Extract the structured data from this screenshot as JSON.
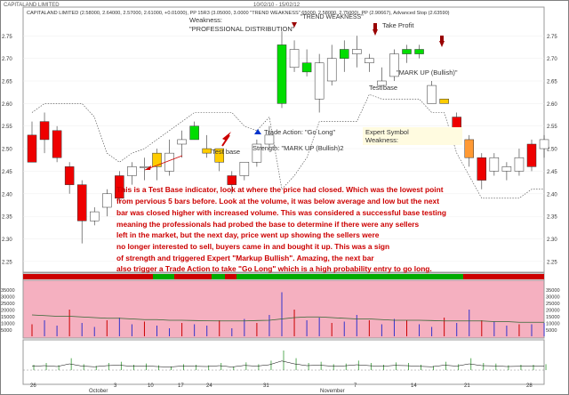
{
  "window": {
    "title": "CAPITALAND LIMITED",
    "ohlc_line": "CAPITALAND LIMITED (2.58000, 2.64000, 2.57000, 2.61000, +0.01000), PP 15R3 (3.05000, 3.0000 \"TREND WEAKNESS\" 65000, 2.58000, 2.75000), PP (2.90667), Advanced Stop (2.63590)",
    "date_range": "10/02/10 - 15/02/12"
  },
  "annotations": {
    "weakness_title": "Weakness:",
    "weakness_text": "\"PROFESSIONAL DISTRIBUTION\"",
    "trend_weakness": "\"TREND WEAKNESS\"",
    "take_profit": "Take Profit",
    "markup_bullish_right": "\"MARK UP (Bullish)\"",
    "test_base_right": "Test base",
    "test_base_left": "Test base",
    "trade_action": "Trade Action: \"Go Long\"",
    "strength": "Strength: \"MARK UP (Bullish)2",
    "expert_symbol": "Expert Symbol",
    "expert_weakness": "Weakness:"
  },
  "explanation": [
    "This is a Test Base indicator, look at where the price had closed. Which was the lowest point",
    "from pervious 5 bars before. Look at the volume, it was below average and low but the next",
    "bar was closed higher with increased volume. This was considered a successful base testing",
    "meaning the professionals had probed the base to determine if there were any sellers",
    "left in the market, but the next day, price went up showing the sellers were",
    "no longer interested to sell, buyers came in and bought it up. This was a sign",
    "of strength and triggered Expert \"Markup Bullish\". Amazing, the next bar",
    "also trigger a Trade Action to take \"Go Long\" which is a high probability entry to go long."
  ],
  "colors": {
    "bull": "#ffffff",
    "bear": "#ee0000",
    "yellow_bar": "#ffcc00",
    "green_bar": "#00dd00",
    "pink_panel": "#f5b0c0",
    "text_red": "#cc0000",
    "note_bg": "#fffbe0"
  },
  "chart_data": {
    "type": "candlestick",
    "y_axis": {
      "ylim": [
        2.23,
        2.79
      ],
      "ticks": [
        "2.75",
        "2.70",
        "2.65",
        "2.60",
        "2.55",
        "2.50",
        "2.45",
        "2.40",
        "2.35",
        "2.30",
        "2.25"
      ]
    },
    "x_axis": {
      "ticks": [
        "26",
        "October",
        "3",
        "10",
        "17",
        "24",
        "31",
        "November",
        "7",
        "14",
        "21",
        "28"
      ]
    },
    "candles": [
      {
        "o": 2.53,
        "h": 2.56,
        "l": 2.47,
        "c": 2.47,
        "color": "bear"
      },
      {
        "o": 2.52,
        "h": 2.58,
        "l": 2.49,
        "c": 2.56,
        "color": "bear"
      },
      {
        "o": 2.54,
        "h": 2.55,
        "l": 2.47,
        "c": 2.48,
        "color": "bear"
      },
      {
        "o": 2.46,
        "h": 2.47,
        "l": 2.4,
        "c": 2.42,
        "color": "bear"
      },
      {
        "o": 2.42,
        "h": 2.43,
        "l": 2.29,
        "c": 2.34,
        "color": "bear"
      },
      {
        "o": 2.34,
        "h": 2.37,
        "l": 2.33,
        "c": 2.36,
        "color": "bull"
      },
      {
        "o": 2.37,
        "h": 2.41,
        "l": 2.35,
        "c": 2.4,
        "color": "bull"
      },
      {
        "o": 2.39,
        "h": 2.45,
        "l": 2.38,
        "c": 2.44,
        "color": "bear"
      },
      {
        "o": 2.44,
        "h": 2.47,
        "l": 2.42,
        "c": 2.46,
        "color": "bull"
      },
      {
        "o": 2.46,
        "h": 2.48,
        "l": 2.43,
        "c": 2.46,
        "color": "bull"
      },
      {
        "o": 2.46,
        "h": 2.5,
        "l": 2.43,
        "c": 2.49,
        "color": "yellow"
      },
      {
        "o": 2.49,
        "h": 2.52,
        "l": 2.44,
        "c": 2.45,
        "color": "bull"
      },
      {
        "o": 2.51,
        "h": 2.54,
        "l": 2.48,
        "c": 2.52,
        "color": "bull"
      },
      {
        "o": 2.52,
        "h": 2.56,
        "l": 2.52,
        "c": 2.55,
        "color": "green"
      },
      {
        "o": 2.5,
        "h": 2.53,
        "l": 2.48,
        "c": 2.49,
        "color": "yellow"
      },
      {
        "o": 2.5,
        "h": 2.5,
        "l": 2.45,
        "c": 2.47,
        "color": "yellow"
      },
      {
        "o": 2.42,
        "h": 2.45,
        "l": 2.4,
        "c": 2.44,
        "color": "bear"
      },
      {
        "o": 2.44,
        "h": 2.47,
        "l": 2.43,
        "c": 2.47,
        "color": "bull"
      },
      {
        "o": 2.47,
        "h": 2.52,
        "l": 2.46,
        "c": 2.51,
        "color": "bull"
      },
      {
        "o": 2.51,
        "h": 2.55,
        "l": 2.5,
        "c": 2.53,
        "color": "bull"
      },
      {
        "o": 2.6,
        "h": 2.76,
        "l": 2.59,
        "c": 2.73,
        "color": "green"
      },
      {
        "o": 2.72,
        "h": 2.74,
        "l": 2.67,
        "c": 2.68,
        "color": "bull"
      },
      {
        "o": 2.69,
        "h": 2.72,
        "l": 2.66,
        "c": 2.67,
        "color": "green"
      },
      {
        "o": 2.69,
        "h": 2.71,
        "l": 2.58,
        "c": 2.61,
        "color": "bull"
      },
      {
        "o": 2.65,
        "h": 2.73,
        "l": 2.64,
        "c": 2.7,
        "color": "bull"
      },
      {
        "o": 2.7,
        "h": 2.74,
        "l": 2.67,
        "c": 2.72,
        "color": "green"
      },
      {
        "o": 2.72,
        "h": 2.75,
        "l": 2.68,
        "c": 2.71,
        "color": "bull"
      },
      {
        "o": 2.69,
        "h": 2.71,
        "l": 2.67,
        "c": 2.7,
        "color": "bull"
      },
      {
        "o": 2.65,
        "h": 2.68,
        "l": 2.63,
        "c": 2.64,
        "color": "bull"
      },
      {
        "o": 2.66,
        "h": 2.72,
        "l": 2.65,
        "c": 2.71,
        "color": "bull"
      },
      {
        "o": 2.71,
        "h": 2.73,
        "l": 2.69,
        "c": 2.72,
        "color": "green"
      },
      {
        "o": 2.72,
        "h": 2.73,
        "l": 2.7,
        "c": 2.71,
        "color": "green"
      },
      {
        "o": 2.64,
        "h": 2.65,
        "l": 2.6,
        "c": 2.6,
        "color": "bull"
      },
      {
        "o": 2.6,
        "h": 2.61,
        "l": 2.6,
        "c": 2.61,
        "color": "yellow"
      },
      {
        "o": 2.57,
        "h": 2.58,
        "l": 2.51,
        "c": 2.52,
        "color": "bear"
      },
      {
        "o": 2.52,
        "h": 2.53,
        "l": 2.46,
        "c": 2.48,
        "color": "orange"
      },
      {
        "o": 2.48,
        "h": 2.49,
        "l": 2.41,
        "c": 2.43,
        "color": "bear"
      },
      {
        "o": 2.45,
        "h": 2.49,
        "l": 2.44,
        "c": 2.48,
        "color": "bull"
      },
      {
        "o": 2.46,
        "h": 2.47,
        "l": 2.43,
        "c": 2.45,
        "color": "bull"
      },
      {
        "o": 2.45,
        "h": 2.5,
        "l": 2.44,
        "c": 2.48,
        "color": "bull"
      },
      {
        "o": 2.46,
        "h": 2.52,
        "l": 2.45,
        "c": 2.51,
        "color": "bear"
      },
      {
        "o": 2.5,
        "h": 2.53,
        "l": 2.48,
        "c": 2.52,
        "color": "bull"
      }
    ],
    "volume": {
      "ylim": [
        0,
        40000
      ],
      "ticks": [
        "35000",
        "30000",
        "25000",
        "20000",
        "15000",
        "10000",
        "5000"
      ],
      "values": [
        9000,
        12000,
        8000,
        20000,
        10000,
        7000,
        12000,
        14000,
        9000,
        11000,
        8000,
        6000,
        10000,
        9000,
        8000,
        12000,
        6000,
        13000,
        10000,
        16000,
        33000,
        20000,
        12000,
        14000,
        10000,
        11000,
        16000,
        12000,
        9000,
        13000,
        12000,
        9000,
        7000,
        14000,
        10000,
        20000,
        12000,
        11000,
        8000,
        9000,
        9000,
        10000
      ],
      "average": [
        16000,
        15500,
        15000,
        15000,
        14500,
        14000,
        13500,
        13500,
        13000,
        12500,
        12500,
        12000,
        12000,
        11800,
        11600,
        11500,
        11500,
        11500,
        11800,
        12000,
        13000,
        14000,
        14500,
        14500,
        14000,
        13500,
        13000,
        13000,
        12500,
        12000,
        12000,
        12000,
        11800,
        11500,
        11500,
        11500,
        11500,
        11000,
        11000,
        10500,
        10500,
        10500
      ]
    }
  }
}
